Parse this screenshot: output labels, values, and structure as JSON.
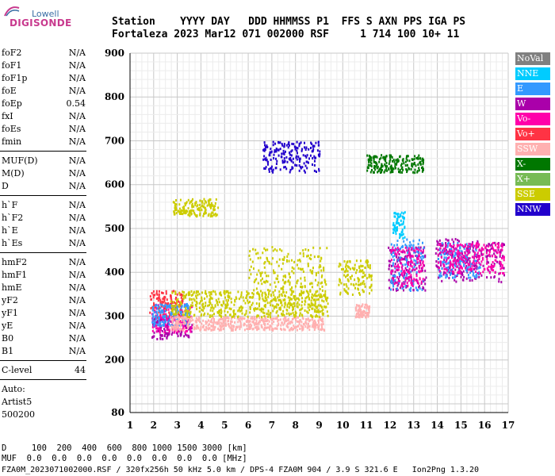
{
  "logo": {
    "top": "Lowell",
    "main": "DIGISONDE"
  },
  "header": {
    "line1": "Station    YYYY DAY   DDD HHMMSS P1  FFS S AXN PPS IGA PS",
    "line2": "Fortaleza 2023 Mar12 071 002000 RSF     1 714 100 10+ 11"
  },
  "params": {
    "group1": [
      {
        "name": "foF2",
        "value": "N/A"
      },
      {
        "name": "foF1",
        "value": "N/A"
      },
      {
        "name": "foF1p",
        "value": "N/A"
      },
      {
        "name": "foE",
        "value": "N/A"
      },
      {
        "name": "foEp",
        "value": "0.54"
      },
      {
        "name": "fxI",
        "value": "N/A"
      },
      {
        "name": "foEs",
        "value": "N/A"
      },
      {
        "name": "fmin",
        "value": "N/A"
      }
    ],
    "group2": [
      {
        "name": "MUF(D)",
        "value": "N/A"
      },
      {
        "name": "M(D)",
        "value": "N/A"
      },
      {
        "name": "D",
        "value": "N/A"
      }
    ],
    "group3": [
      {
        "name": "h`F",
        "value": "N/A"
      },
      {
        "name": "h`F2",
        "value": "N/A"
      },
      {
        "name": "h`E",
        "value": "N/A"
      },
      {
        "name": "h`Es",
        "value": "N/A"
      }
    ],
    "group4": [
      {
        "name": "hmF2",
        "value": "N/A"
      },
      {
        "name": "hmF1",
        "value": "N/A"
      },
      {
        "name": "hmE",
        "value": "N/A"
      },
      {
        "name": "yF2",
        "value": "N/A"
      },
      {
        "name": "yF1",
        "value": "N/A"
      },
      {
        "name": "yE",
        "value": "N/A"
      },
      {
        "name": "B0",
        "value": "N/A"
      },
      {
        "name": "B1",
        "value": "N/A"
      }
    ],
    "clevel": {
      "name": "C-level",
      "value": "44"
    },
    "auto": [
      "Auto:",
      "Artist5",
      "500200"
    ]
  },
  "legend": [
    {
      "label": "NoVal",
      "color": "#808080"
    },
    {
      "label": "NNE",
      "color": "#00ccff"
    },
    {
      "label": "E",
      "color": "#3399ff"
    },
    {
      "label": "W",
      "color": "#aa00aa"
    },
    {
      "label": "Vo-",
      "color": "#ff00aa"
    },
    {
      "label": "Vo+",
      "color": "#ff3344"
    },
    {
      "label": "SSW",
      "color": "#ffb0b0"
    },
    {
      "label": "X-",
      "color": "#007700"
    },
    {
      "label": "X+",
      "color": "#77bb55"
    },
    {
      "label": "SSE",
      "color": "#cccc00"
    },
    {
      "label": "NNW",
      "color": "#2200cc"
    }
  ],
  "chart_data": {
    "type": "scatter",
    "xlim": [
      1,
      17
    ],
    "ylim": [
      80,
      900
    ],
    "x_ticks": [
      1,
      2,
      3,
      4,
      5,
      6,
      7,
      8,
      9,
      10,
      11,
      12,
      13,
      14,
      15,
      16,
      17
    ],
    "y_ticks": [
      80,
      200,
      300,
      400,
      500,
      600,
      700,
      800,
      900
    ],
    "clusters": [
      {
        "series": "W",
        "x": [
          1.9,
          3.6
        ],
        "y": [
          250,
          300
        ]
      },
      {
        "series": "Vo-",
        "x": [
          1.9,
          3.6
        ],
        "y": [
          265,
          330
        ]
      },
      {
        "series": "Vo+",
        "x": [
          1.8,
          3.2
        ],
        "y": [
          300,
          360
        ]
      },
      {
        "series": "E",
        "x": [
          1.9,
          3.5
        ],
        "y": [
          280,
          330
        ]
      },
      {
        "series": "SSW",
        "x": [
          2.7,
          9.2
        ],
        "y": [
          270,
          300
        ]
      },
      {
        "series": "SSE",
        "x": [
          2.7,
          9.4
        ],
        "y": [
          300,
          360
        ]
      },
      {
        "series": "SSE",
        "x": [
          2.8,
          4.7
        ],
        "y": [
          530,
          570
        ]
      },
      {
        "series": "SSE",
        "x": [
          6.0,
          9.3
        ],
        "y": [
          320,
          460
        ]
      },
      {
        "series": "SSE",
        "x": [
          9.8,
          11.2
        ],
        "y": [
          350,
          430
        ]
      },
      {
        "series": "SSW",
        "x": [
          10.5,
          11.1
        ],
        "y": [
          300,
          330
        ]
      },
      {
        "series": "NNW",
        "x": [
          6.6,
          9.0
        ],
        "y": [
          630,
          700
        ]
      },
      {
        "series": "X-",
        "x": [
          11.0,
          13.4
        ],
        "y": [
          630,
          670
        ]
      },
      {
        "series": "W",
        "x": [
          11.9,
          13.5
        ],
        "y": [
          360,
          460
        ]
      },
      {
        "series": "E",
        "x": [
          12.0,
          13.4
        ],
        "y": [
          360,
          480
        ]
      },
      {
        "series": "Vo-",
        "x": [
          12.0,
          13.4
        ],
        "y": [
          370,
          460
        ]
      },
      {
        "series": "W",
        "x": [
          13.9,
          16.8
        ],
        "y": [
          380,
          480
        ]
      },
      {
        "series": "E",
        "x": [
          14.0,
          15.8
        ],
        "y": [
          390,
          470
        ]
      },
      {
        "series": "Vo-",
        "x": [
          14.0,
          16.8
        ],
        "y": [
          400,
          470
        ]
      },
      {
        "series": "NNE",
        "x": [
          12.1,
          12.6
        ],
        "y": [
          480,
          540
        ]
      }
    ]
  },
  "footer": {
    "d_row": "D     100  200  400  600  800 1000 1500 3000 [km]",
    "muf_row": "MUF  0.0  0.0  0.0  0.0  0.0  0.0  0.0  0.0 [MHz]",
    "file_row": "FZA0M_2023071002000.RSF / 320fx256h 50 kHz 5.0 km / DPS-4 FZA0M 904 / 3.9 S 321.6 E   Ion2Png 1.3.20"
  }
}
